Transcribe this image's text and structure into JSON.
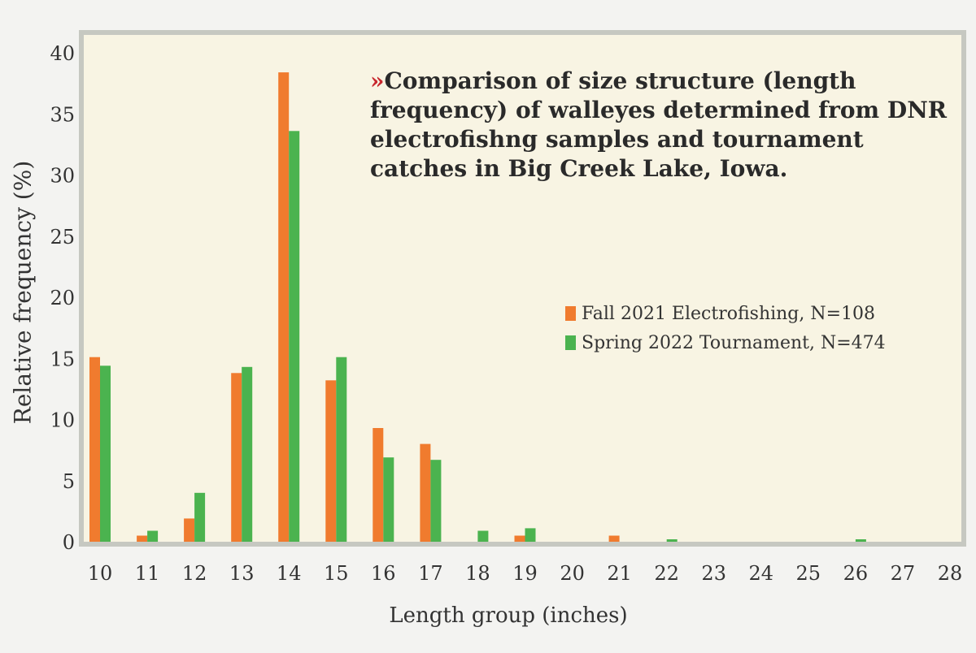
{
  "colors": {
    "page_background": "#f3f3f1",
    "plot_background": "#f8f4e3",
    "frame": "#c6c8c1",
    "series_1": "#f07b2e",
    "series_2": "#4bb34f",
    "title_marker": "#c8282e"
  },
  "chart_data": {
    "type": "bar",
    "title_marker": "»",
    "title": "Comparison of size structure (length frequency) of walleyes determined from DNR electrofishng samples and tournament catches in Big Creek Lake, Iowa.",
    "xlabel": "Length group (inches)",
    "ylabel": "Relative frequency (%)",
    "categories": [
      "10",
      "11",
      "12",
      "13",
      "14",
      "15",
      "16",
      "17",
      "18",
      "19",
      "20",
      "21",
      "22",
      "23",
      "24",
      "25",
      "26",
      "27",
      "28"
    ],
    "ylim": [
      0,
      40
    ],
    "yticks": [
      0,
      5,
      10,
      15,
      20,
      25,
      30,
      35,
      40
    ],
    "grid": false,
    "legend_position": "right-center",
    "series": [
      {
        "name": "Fall 2021 Electrofishing, N=108",
        "color": "#f07b2e",
        "values": [
          15.1,
          0.5,
          1.9,
          13.8,
          38.4,
          13.2,
          9.3,
          8.0,
          0,
          0.5,
          0,
          0.5,
          0,
          0,
          0,
          0,
          0,
          0,
          0
        ]
      },
      {
        "name": "Spring 2022 Tournament, N=474",
        "color": "#4bb34f",
        "values": [
          14.4,
          0.9,
          4.0,
          14.3,
          33.6,
          15.1,
          6.9,
          6.7,
          0.9,
          1.1,
          0,
          0,
          0.2,
          0,
          0,
          0,
          0.2,
          0,
          0
        ]
      }
    ]
  }
}
